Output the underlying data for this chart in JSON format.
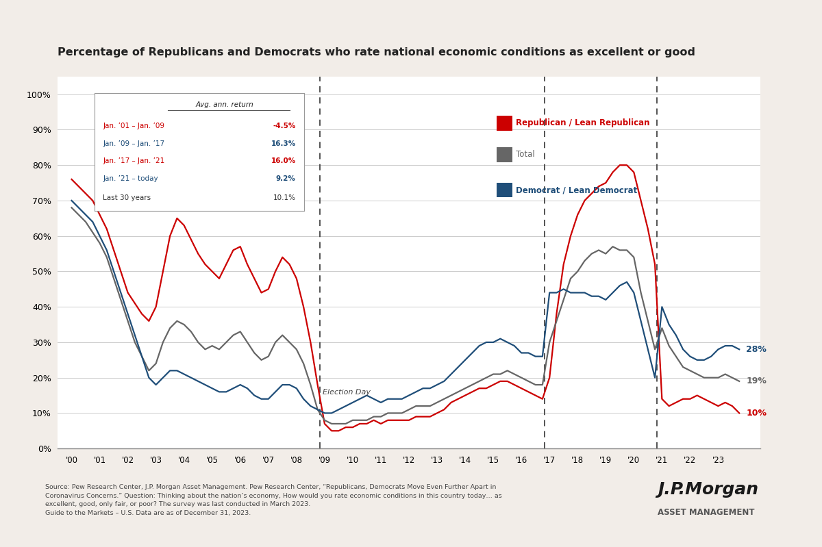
{
  "title": "Percentage of Republicans and Democrats who rate national economic conditions as excellent or good",
  "background_color": "#f2ede8",
  "plot_bg_color": "#ffffff",
  "election_lines": [
    2008.83,
    2016.83,
    2020.83
  ],
  "election_label": "Election Day",
  "yticks": [
    0,
    10,
    20,
    30,
    40,
    50,
    60,
    70,
    80,
    90,
    100
  ],
  "ylim": [
    0,
    105
  ],
  "xlim": [
    1999.5,
    2024.5
  ],
  "xtick_labels": [
    "'00",
    "'01",
    "'02",
    "'03",
    "'04",
    "'05",
    "'06",
    "'07",
    "'08",
    "'09",
    "'10",
    "'11",
    "'12",
    "'13",
    "'14",
    "'15",
    "'16",
    "'17",
    "'18",
    "'19",
    "'20",
    "'21",
    "'22",
    "'23"
  ],
  "xtick_positions": [
    2000,
    2001,
    2002,
    2003,
    2004,
    2005,
    2006,
    2007,
    2008,
    2009,
    2010,
    2011,
    2012,
    2013,
    2014,
    2015,
    2016,
    2017,
    2018,
    2019,
    2020,
    2021,
    2022,
    2023
  ],
  "legend_box": {
    "title": "Avg. ann. return",
    "rows": [
      {
        "label": "Jan. ’01 – Jan. ’09",
        "value": "-4.5%",
        "color": "#cc0000"
      },
      {
        "label": "Jan. ’09 – Jan. ’17",
        "value": "16.3%",
        "color": "#1f4e79"
      },
      {
        "label": "Jan. ’17 – Jan. ’21",
        "value": "16.0%",
        "color": "#cc0000"
      },
      {
        "label": "Jan. ’21 – today",
        "value": "9.2%",
        "color": "#1f4e79"
      },
      {
        "label": "Last 30 years",
        "value": "10.1%",
        "color": "#333333"
      }
    ]
  },
  "source_text": "Source: Pew Research Center, J.P. Morgan Asset Management. Pew Research Center, “Republicans, Democrats Move Even Further Apart in\nCoronavirus Concerns.” Question: Thinking about the nation’s economy, How would you rate economic conditions in this country today… as\nexcellent, good, only fair, or poor? The survey was last conducted in March 2023.\nGuide to the Markets – U.S. Data are as of December 31, 2023.",
  "republican": {
    "color": "#cc0000",
    "label": "Republican / Lean Republican",
    "x": [
      2000.0,
      2000.25,
      2000.5,
      2000.75,
      2001.0,
      2001.25,
      2001.5,
      2001.75,
      2002.0,
      2002.25,
      2002.5,
      2002.75,
      2003.0,
      2003.25,
      2003.5,
      2003.75,
      2004.0,
      2004.25,
      2004.5,
      2004.75,
      2005.0,
      2005.25,
      2005.5,
      2005.75,
      2006.0,
      2006.25,
      2006.5,
      2006.75,
      2007.0,
      2007.25,
      2007.5,
      2007.75,
      2008.0,
      2008.25,
      2008.5,
      2008.75,
      2009.0,
      2009.25,
      2009.5,
      2009.75,
      2010.0,
      2010.25,
      2010.5,
      2010.75,
      2011.0,
      2011.25,
      2011.5,
      2011.75,
      2012.0,
      2012.25,
      2012.5,
      2012.75,
      2013.0,
      2013.25,
      2013.5,
      2013.75,
      2014.0,
      2014.25,
      2014.5,
      2014.75,
      2015.0,
      2015.25,
      2015.5,
      2015.75,
      2016.0,
      2016.25,
      2016.5,
      2016.75,
      2017.0,
      2017.25,
      2017.5,
      2017.75,
      2018.0,
      2018.25,
      2018.5,
      2018.75,
      2019.0,
      2019.25,
      2019.5,
      2019.75,
      2020.0,
      2020.25,
      2020.5,
      2020.75,
      2021.0,
      2021.25,
      2021.5,
      2021.75,
      2022.0,
      2022.25,
      2022.5,
      2022.75,
      2023.0,
      2023.25,
      2023.5,
      2023.75
    ],
    "y": [
      76,
      74,
      72,
      70,
      66,
      62,
      56,
      50,
      44,
      41,
      38,
      36,
      40,
      50,
      60,
      65,
      63,
      59,
      55,
      52,
      50,
      48,
      52,
      56,
      57,
      52,
      48,
      44,
      45,
      50,
      54,
      52,
      48,
      40,
      30,
      18,
      7,
      5,
      5,
      6,
      6,
      7,
      7,
      8,
      7,
      8,
      8,
      8,
      8,
      9,
      9,
      9,
      10,
      11,
      13,
      14,
      15,
      16,
      17,
      17,
      18,
      19,
      19,
      18,
      17,
      16,
      15,
      14,
      20,
      38,
      52,
      60,
      66,
      70,
      72,
      74,
      75,
      78,
      80,
      80,
      78,
      70,
      62,
      52,
      14,
      12,
      13,
      14,
      14,
      15,
      14,
      13,
      12,
      13,
      12,
      10
    ]
  },
  "total": {
    "color": "#666666",
    "label": "Total",
    "x": [
      2000.0,
      2000.25,
      2000.5,
      2000.75,
      2001.0,
      2001.25,
      2001.5,
      2001.75,
      2002.0,
      2002.25,
      2002.5,
      2002.75,
      2003.0,
      2003.25,
      2003.5,
      2003.75,
      2004.0,
      2004.25,
      2004.5,
      2004.75,
      2005.0,
      2005.25,
      2005.5,
      2005.75,
      2006.0,
      2006.25,
      2006.5,
      2006.75,
      2007.0,
      2007.25,
      2007.5,
      2007.75,
      2008.0,
      2008.25,
      2008.5,
      2008.75,
      2009.0,
      2009.25,
      2009.5,
      2009.75,
      2010.0,
      2010.25,
      2010.5,
      2010.75,
      2011.0,
      2011.25,
      2011.5,
      2011.75,
      2012.0,
      2012.25,
      2012.5,
      2012.75,
      2013.0,
      2013.25,
      2013.5,
      2013.75,
      2014.0,
      2014.25,
      2014.5,
      2014.75,
      2015.0,
      2015.25,
      2015.5,
      2015.75,
      2016.0,
      2016.25,
      2016.5,
      2016.75,
      2017.0,
      2017.25,
      2017.5,
      2017.75,
      2018.0,
      2018.25,
      2018.5,
      2018.75,
      2019.0,
      2019.25,
      2019.5,
      2019.75,
      2020.0,
      2020.25,
      2020.5,
      2020.75,
      2021.0,
      2021.25,
      2021.5,
      2021.75,
      2022.0,
      2022.25,
      2022.5,
      2022.75,
      2023.0,
      2023.25,
      2023.5,
      2023.75
    ],
    "y": [
      68,
      66,
      64,
      61,
      58,
      54,
      48,
      42,
      36,
      30,
      26,
      22,
      24,
      30,
      34,
      36,
      35,
      33,
      30,
      28,
      29,
      28,
      30,
      32,
      33,
      30,
      27,
      25,
      26,
      30,
      32,
      30,
      28,
      24,
      18,
      11,
      8,
      7,
      7,
      7,
      8,
      8,
      8,
      9,
      9,
      10,
      10,
      10,
      11,
      12,
      12,
      12,
      13,
      14,
      15,
      16,
      17,
      18,
      19,
      20,
      21,
      21,
      22,
      21,
      20,
      19,
      18,
      18,
      30,
      36,
      42,
      48,
      50,
      53,
      55,
      56,
      55,
      57,
      56,
      56,
      54,
      44,
      36,
      28,
      34,
      29,
      26,
      23,
      22,
      21,
      20,
      20,
      20,
      21,
      20,
      19
    ]
  },
  "democrat": {
    "color": "#1f4e79",
    "label": "Democrat / Lean Democrat",
    "x": [
      2000.0,
      2000.25,
      2000.5,
      2000.75,
      2001.0,
      2001.25,
      2001.5,
      2001.75,
      2002.0,
      2002.25,
      2002.5,
      2002.75,
      2003.0,
      2003.25,
      2003.5,
      2003.75,
      2004.0,
      2004.25,
      2004.5,
      2004.75,
      2005.0,
      2005.25,
      2005.5,
      2005.75,
      2006.0,
      2006.25,
      2006.5,
      2006.75,
      2007.0,
      2007.25,
      2007.5,
      2007.75,
      2008.0,
      2008.25,
      2008.5,
      2008.75,
      2009.0,
      2009.25,
      2009.5,
      2009.75,
      2010.0,
      2010.25,
      2010.5,
      2010.75,
      2011.0,
      2011.25,
      2011.5,
      2011.75,
      2012.0,
      2012.25,
      2012.5,
      2012.75,
      2013.0,
      2013.25,
      2013.5,
      2013.75,
      2014.0,
      2014.25,
      2014.5,
      2014.75,
      2015.0,
      2015.25,
      2015.5,
      2015.75,
      2016.0,
      2016.25,
      2016.5,
      2016.75,
      2017.0,
      2017.25,
      2017.5,
      2017.75,
      2018.0,
      2018.25,
      2018.5,
      2018.75,
      2019.0,
      2019.25,
      2019.5,
      2019.75,
      2020.0,
      2020.25,
      2020.5,
      2020.75,
      2021.0,
      2021.25,
      2021.5,
      2021.75,
      2022.0,
      2022.25,
      2022.5,
      2022.75,
      2023.0,
      2023.25,
      2023.5,
      2023.75
    ],
    "y": [
      70,
      68,
      66,
      64,
      60,
      56,
      50,
      44,
      38,
      32,
      26,
      20,
      18,
      20,
      22,
      22,
      21,
      20,
      19,
      18,
      17,
      16,
      16,
      17,
      18,
      17,
      15,
      14,
      14,
      16,
      18,
      18,
      17,
      14,
      12,
      11,
      10,
      10,
      11,
      12,
      13,
      14,
      15,
      14,
      13,
      14,
      14,
      14,
      15,
      16,
      17,
      17,
      18,
      19,
      21,
      23,
      25,
      27,
      29,
      30,
      30,
      31,
      30,
      29,
      27,
      27,
      26,
      26,
      44,
      44,
      45,
      44,
      44,
      44,
      43,
      43,
      42,
      44,
      46,
      47,
      44,
      36,
      28,
      20,
      40,
      35,
      32,
      28,
      26,
      25,
      25,
      26,
      28,
      29,
      29,
      28
    ]
  }
}
